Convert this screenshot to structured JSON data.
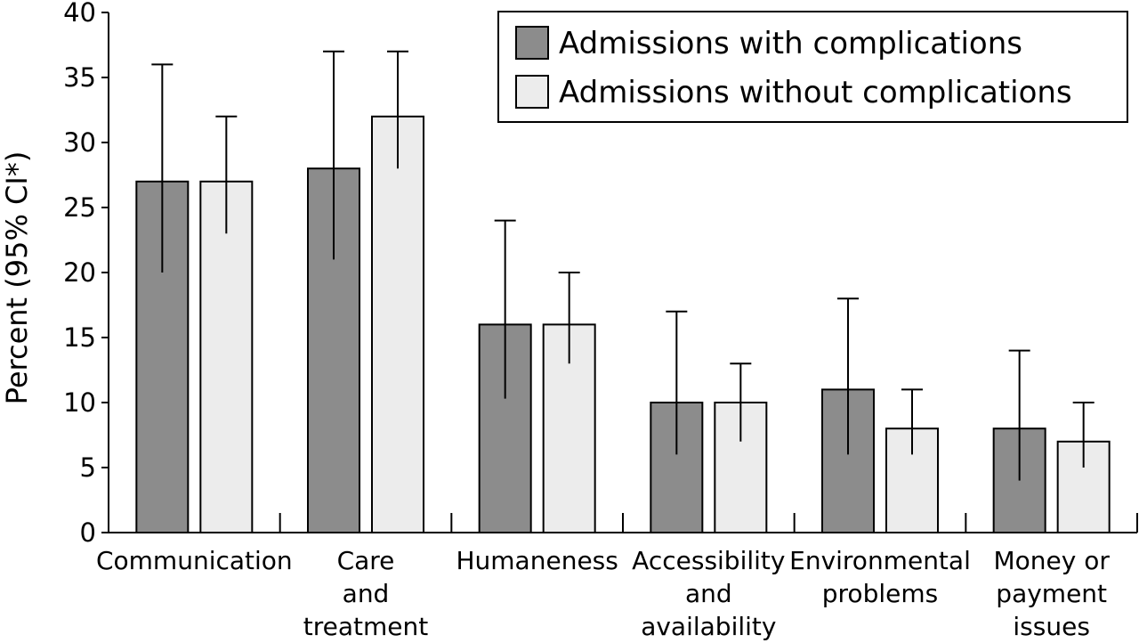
{
  "chart_data": {
    "type": "bar",
    "title": "",
    "xlabel": "",
    "ylabel": "Percent (95% CI*)",
    "ylim": [
      0,
      40
    ],
    "yticks": [
      0,
      5,
      10,
      15,
      20,
      25,
      30,
      35,
      40
    ],
    "grid": false,
    "legend_position": "top-right",
    "categories": [
      [
        "Communication"
      ],
      [
        "Care",
        "and",
        "treatment"
      ],
      [
        "Humaneness"
      ],
      [
        "Accessibility",
        "and",
        "availability"
      ],
      [
        "Environmental",
        "problems"
      ],
      [
        "Money or",
        "payment",
        "issues"
      ]
    ],
    "series": [
      {
        "name": "Admissions with complications",
        "color": "#8c8c8c",
        "values": [
          27,
          28,
          16,
          10,
          11,
          8
        ],
        "ci_low": [
          20,
          21,
          10.3,
          6,
          6,
          4
        ],
        "ci_high": [
          36,
          37,
          24,
          17,
          18,
          14
        ]
      },
      {
        "name": "Admissions without complications",
        "color": "#ececec",
        "values": [
          27,
          32,
          16,
          10,
          8,
          7
        ],
        "ci_low": [
          23,
          28,
          13,
          7,
          6,
          5
        ],
        "ci_high": [
          32,
          37,
          20,
          13,
          11,
          10
        ]
      }
    ]
  }
}
